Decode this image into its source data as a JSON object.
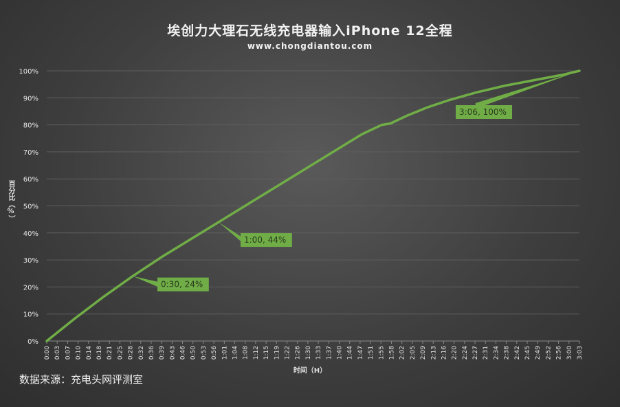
{
  "chart_data": {
    "type": "line",
    "title": "埃创力大理石无线充电器输入iPhone 12全程",
    "subtitle": "www.chongdiantou.com",
    "xlabel": "时间（H）",
    "ylabel": "百分比（%）",
    "source": "数据来源：充电头网评测室",
    "ylim": [
      0,
      100
    ],
    "yticks": [
      "0%",
      "10%",
      "20%",
      "30%",
      "40%",
      "50%",
      "60%",
      "70%",
      "80%",
      "90%",
      "100%"
    ],
    "x_ticks": [
      "0:00",
      "0:03",
      "0:07",
      "0:10",
      "0:14",
      "0:18",
      "0:21",
      "0:25",
      "0:28",
      "0:32",
      "0:36",
      "0:39",
      "0:43",
      "0:46",
      "0:50",
      "0:53",
      "0:56",
      "1:01",
      "1:04",
      "1:08",
      "1:12",
      "1:15",
      "1:19",
      "1:22",
      "1:26",
      "1:30",
      "1:33",
      "1:37",
      "1:40",
      "1:44",
      "1:47",
      "1:51",
      "1:55",
      "1:58",
      "2:02",
      "2:05",
      "2:09",
      "2:13",
      "2:16",
      "2:20",
      "2:24",
      "2:27",
      "2:31",
      "2:34",
      "2:38",
      "2:42",
      "2:45",
      "2:49",
      "2:52",
      "2:56",
      "3:00",
      "3:03"
    ],
    "grid": true,
    "legend": "none",
    "line_color": "#70ad47",
    "series": [
      {
        "x": [
          0,
          10,
          20,
          30,
          40,
          50,
          60,
          70,
          80,
          90,
          100,
          110,
          117,
          120,
          126,
          133,
          140,
          150,
          160,
          170,
          180,
          186
        ],
        "y": [
          0,
          8.5,
          16.5,
          24,
          31,
          37.5,
          44,
          50.5,
          57,
          63.5,
          70,
          76.5,
          80,
          80.5,
          83.5,
          86.5,
          89,
          92,
          94.5,
          96.5,
          98.5,
          100
        ]
      }
    ],
    "annotations": [
      {
        "x": 30,
        "y": 24,
        "text": "0:30, 24%"
      },
      {
        "x": 60,
        "y": 44,
        "text": "1:00, 44%"
      },
      {
        "x": 186,
        "y": 100,
        "text": "3:06, 100%"
      }
    ]
  }
}
